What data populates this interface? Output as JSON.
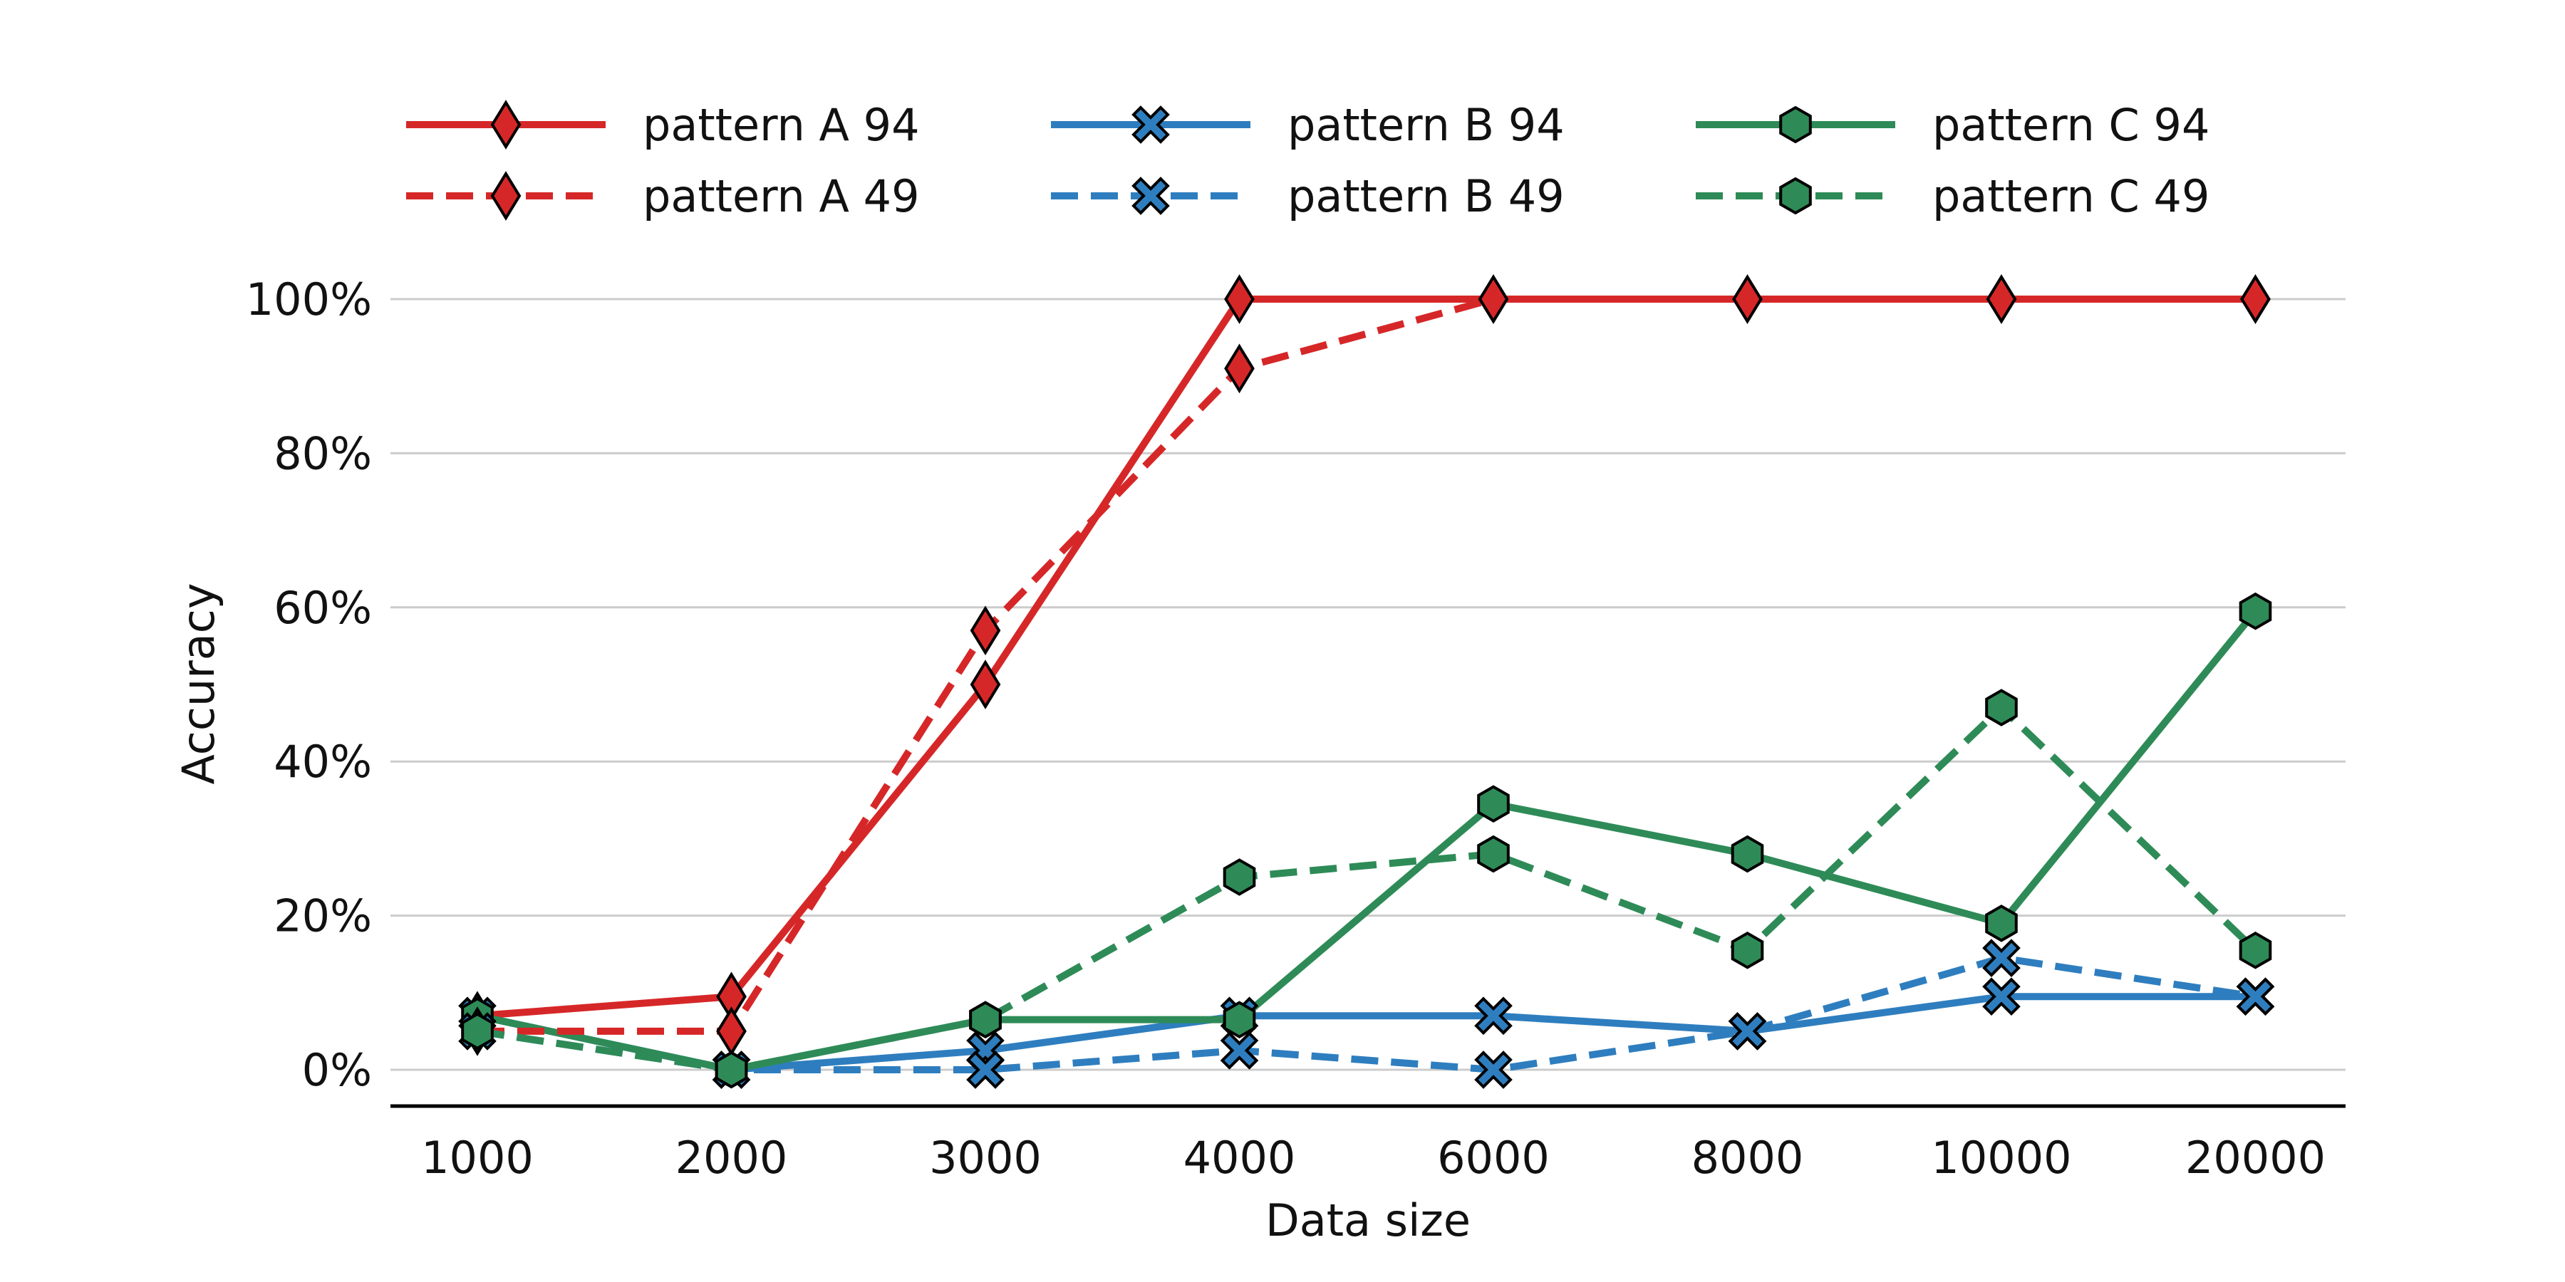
{
  "chart_data": {
    "type": "line",
    "x": [
      "1000",
      "2000",
      "3000",
      "4000",
      "6000",
      "8000",
      "10000",
      "20000"
    ],
    "xlabel": "Data size",
    "ylabel": "Accuracy",
    "ylim": [
      0,
      100
    ],
    "yticks": [
      0,
      20,
      40,
      60,
      80,
      100
    ],
    "ytick_labels": [
      "0%",
      "20%",
      "40%",
      "60%",
      "80%",
      "100%"
    ],
    "grid": "horizontal",
    "legend_position": "top",
    "series": [
      {
        "name": "pattern A  94",
        "pattern": "pattern A",
        "suffix": "94",
        "color": "#d62728",
        "style": "solid",
        "marker": "diamond",
        "values": [
          7,
          9.5,
          50,
          100,
          100,
          100,
          100,
          100
        ]
      },
      {
        "name": "pattern B  94",
        "pattern": "pattern B",
        "suffix": "94",
        "color": "#2e7ebf",
        "style": "solid",
        "marker": "x",
        "values": [
          7,
          0,
          2.5,
          7,
          7,
          5,
          9.5,
          9.5
        ]
      },
      {
        "name": "pattern C  94",
        "pattern": "pattern C",
        "suffix": "94",
        "color": "#2e8b57",
        "style": "solid",
        "marker": "hexagon",
        "values": [
          7,
          0,
          6.5,
          6.5,
          34.5,
          28,
          19,
          59.5
        ]
      },
      {
        "name": "pattern A  49",
        "pattern": "pattern A",
        "suffix": "49",
        "color": "#d62728",
        "style": "dashed",
        "marker": "diamond",
        "values": [
          5,
          5,
          57,
          91,
          100,
          100,
          100,
          100
        ]
      },
      {
        "name": "pattern B  49",
        "pattern": "pattern B",
        "suffix": "49",
        "color": "#2e7ebf",
        "style": "dashed",
        "marker": "x",
        "values": [
          5,
          0,
          0,
          2.5,
          0,
          5,
          14.5,
          9.5
        ]
      },
      {
        "name": "pattern C  49",
        "pattern": "pattern C",
        "suffix": "49",
        "color": "#2e8b57",
        "style": "dashed",
        "marker": "hexagon",
        "values": [
          5,
          0,
          6.5,
          25,
          28,
          15.5,
          47,
          15.5
        ]
      }
    ]
  }
}
